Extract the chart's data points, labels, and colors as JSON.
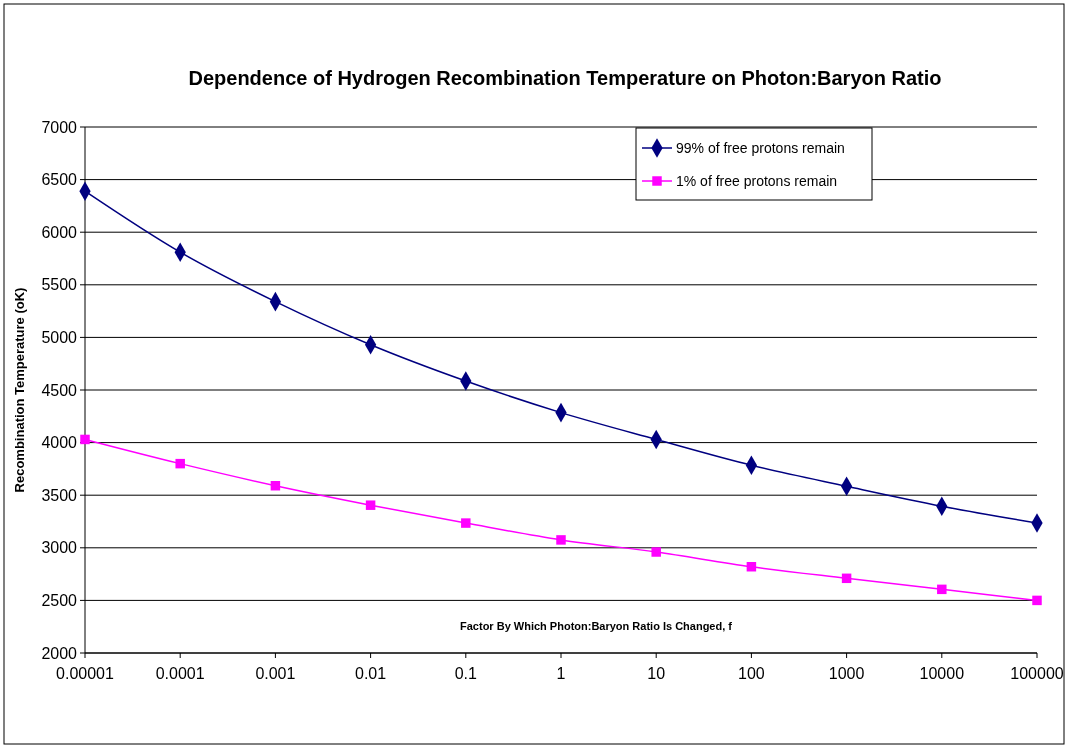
{
  "chart_data": {
    "type": "line",
    "title": "Dependence of Hydrogen Recombination Temperature on Photon:Baryon Ratio",
    "xlabel": "Factor By Which Photon:Baryon Ratio Is Changed, f",
    "ylabel": "Recombination Temperature (oK)",
    "categories": [
      "0.00001",
      "0.0001",
      "0.001",
      "0.01",
      "0.1",
      "1",
      "10",
      "100",
      "1000",
      "10000",
      "100000"
    ],
    "series": [
      {
        "name": "99% of free protons remain",
        "color": "#000080",
        "marker": "diamond",
        "values": [
          6390,
          5810,
          5340,
          4930,
          4585,
          4285,
          4030,
          3785,
          3585,
          3395,
          3235
        ]
      },
      {
        "name": "1% of free protons remain",
        "color": "#ff00ff",
        "marker": "square",
        "values": [
          4030,
          3800,
          3590,
          3405,
          3235,
          3075,
          2960,
          2820,
          2710,
          2605,
          2500
        ]
      }
    ],
    "ylim": [
      2000,
      7000
    ],
    "yticks": [
      2000,
      2500,
      3000,
      3500,
      4000,
      4500,
      5000,
      5500,
      6000,
      6500,
      7000
    ],
    "grid": "y",
    "legend": "top right"
  }
}
